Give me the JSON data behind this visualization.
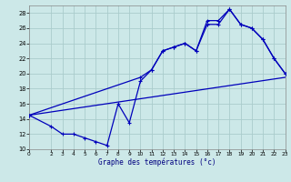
{
  "xlabel": "Graphe des températures (°c)",
  "bg_color": "#cce8e8",
  "grid_color": "#aacccc",
  "line_color": "#0000bb",
  "xlim": [
    0,
    23
  ],
  "ylim": [
    10,
    29
  ],
  "xticks": [
    0,
    2,
    3,
    4,
    5,
    6,
    7,
    8,
    9,
    10,
    11,
    12,
    13,
    14,
    15,
    16,
    17,
    18,
    19,
    20,
    21,
    22,
    23
  ],
  "yticks": [
    10,
    12,
    14,
    16,
    18,
    20,
    22,
    24,
    26,
    28
  ],
  "curve1_x": [
    0,
    2,
    3,
    4,
    5,
    6,
    7,
    8,
    9,
    10,
    11,
    12,
    13,
    14,
    15,
    16,
    17,
    18,
    19,
    20,
    21,
    22,
    23
  ],
  "curve1_y": [
    14.5,
    13.0,
    12.0,
    12.0,
    11.5,
    11.0,
    10.5,
    16.0,
    13.5,
    19.0,
    20.5,
    23.0,
    23.5,
    24.0,
    23.0,
    27.0,
    27.0,
    28.5,
    26.5,
    26.0,
    24.5,
    22.0,
    20.0
  ],
  "curve2_x": [
    0,
    10,
    11,
    12,
    13,
    14,
    15,
    16,
    17,
    18,
    19,
    20,
    21,
    22,
    23
  ],
  "curve2_y": [
    14.5,
    19.5,
    20.5,
    23.0,
    23.5,
    24.0,
    23.0,
    26.5,
    26.5,
    28.5,
    26.5,
    26.0,
    24.5,
    22.0,
    20.0
  ],
  "line3_x": [
    0,
    23
  ],
  "line3_y": [
    14.5,
    19.5
  ]
}
